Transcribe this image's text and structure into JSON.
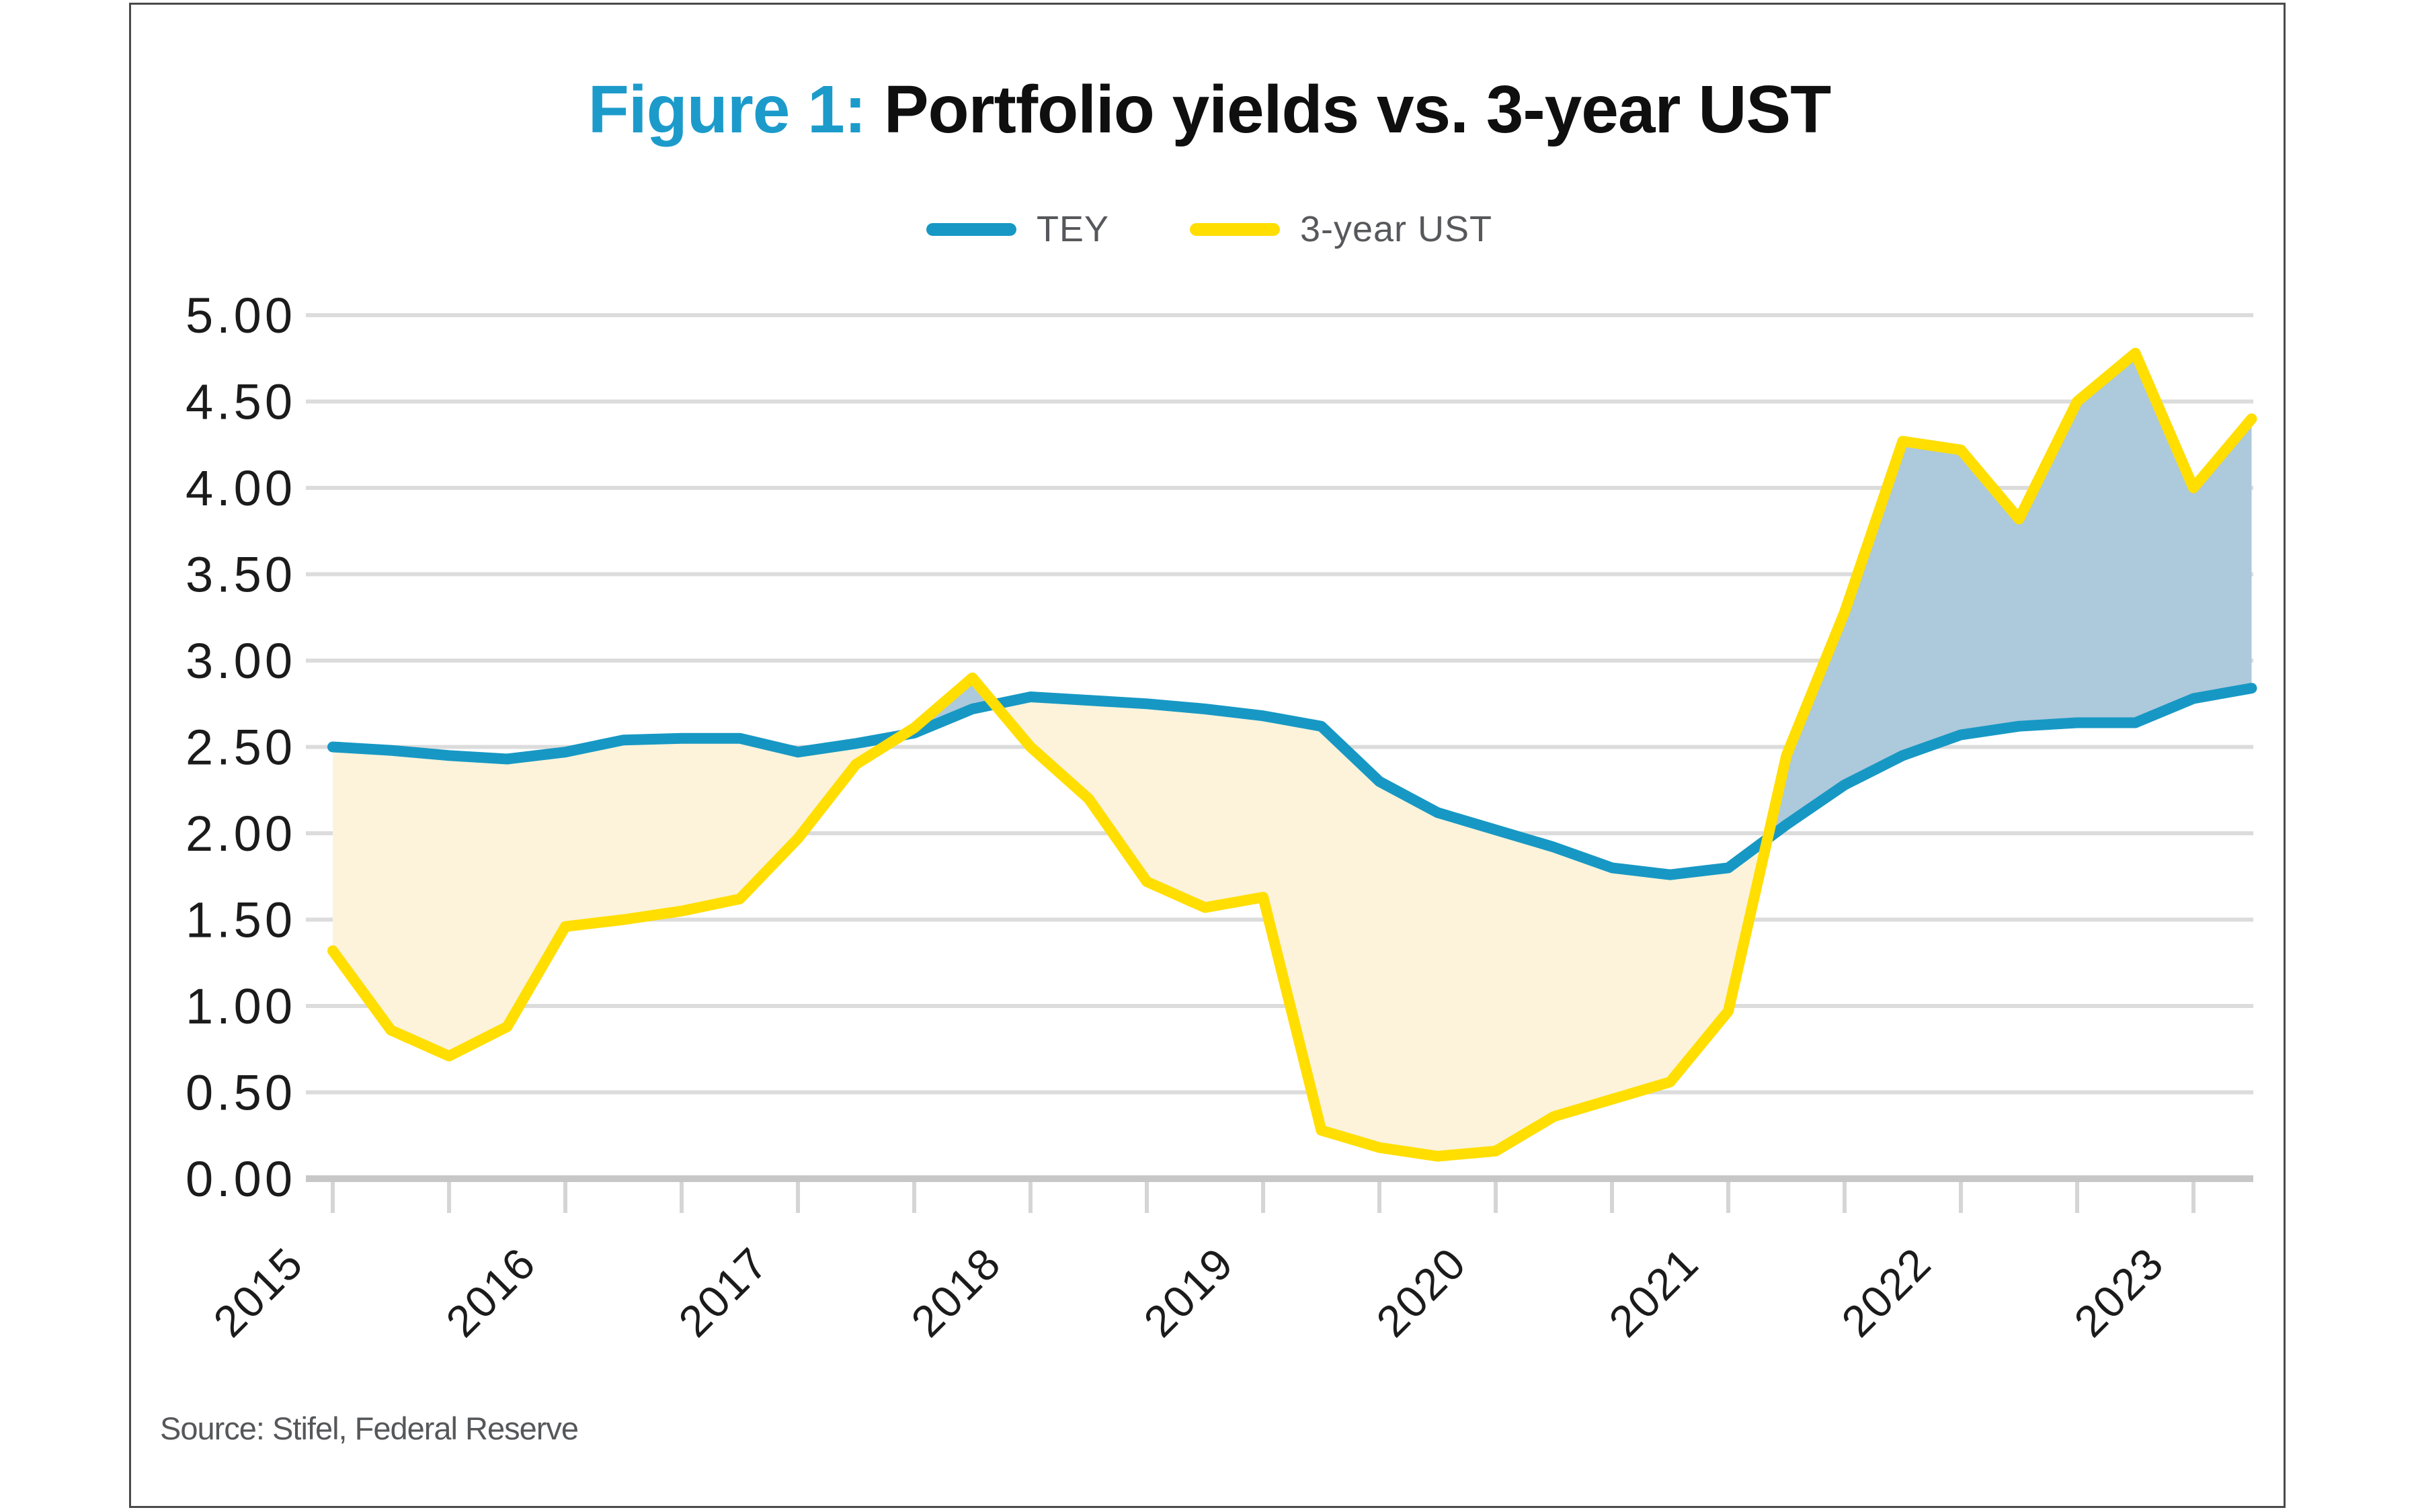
{
  "title": {
    "figure_label": "Figure 1:",
    "text": "Portfolio yields vs. 3-year UST"
  },
  "legend": {
    "items": [
      {
        "label": "TEY",
        "color": "#1798c4"
      },
      {
        "label": "3-year UST",
        "color": "#ffde00"
      }
    ]
  },
  "source": {
    "text": "Source: Stifel, Federal Reserve"
  },
  "colors": {
    "accent_title": "#1c9bcb",
    "tey_line": "#1798c4",
    "ust_line": "#ffde00",
    "fill_tey_above": "#fcf3da",
    "fill_ust_above": "#adc9dc",
    "grid": "#dcdcdc",
    "axis": "#c7c7c7",
    "tick": "#d5d5d5",
    "axis_text": "#1b1b1b",
    "gray_text": "#57585b",
    "frame": "#4a4a4b",
    "background": "#ffffff"
  },
  "chart_data": {
    "type": "line",
    "title": "Figure 1: Portfolio yields vs. 3-year UST",
    "xlabel": "",
    "ylabel": "",
    "grid": true,
    "legend_position": "top-center",
    "xlim": [
      2015.0,
      2023.25
    ],
    "ylim": [
      0,
      5
    ],
    "ytick_step": 0.5,
    "ytick_labels": [
      "0.00",
      "0.50",
      "1.00",
      "1.50",
      "2.00",
      "2.50",
      "3.00",
      "3.50",
      "4.00",
      "4.50",
      "5.00"
    ],
    "xtick_years": [
      2015,
      2016,
      2017,
      2018,
      2019,
      2020,
      2021,
      2022,
      2023
    ],
    "xtick_minor_every": 0.5,
    "x": [
      2015.0,
      2015.25,
      2015.5,
      2015.75,
      2016.0,
      2016.25,
      2016.5,
      2016.75,
      2017.0,
      2017.25,
      2017.5,
      2017.75,
      2018.0,
      2018.25,
      2018.5,
      2018.75,
      2019.0,
      2019.25,
      2019.5,
      2019.75,
      2020.0,
      2020.25,
      2020.5,
      2020.75,
      2021.0,
      2021.25,
      2021.5,
      2021.75,
      2022.0,
      2022.25,
      2022.5,
      2022.75,
      2023.0,
      2023.25
    ],
    "series": [
      {
        "name": "TEY",
        "color": "#1798c4",
        "values": [
          2.5,
          2.48,
          2.45,
          2.43,
          2.47,
          2.54,
          2.55,
          2.55,
          2.47,
          2.52,
          2.58,
          2.72,
          2.79,
          2.77,
          2.75,
          2.72,
          2.68,
          2.62,
          2.3,
          2.12,
          2.02,
          1.92,
          1.8,
          1.76,
          1.8,
          2.05,
          2.28,
          2.45,
          2.57,
          2.62,
          2.64,
          2.64,
          2.78,
          2.84
        ]
      },
      {
        "name": "3-year UST",
        "color": "#ffde00",
        "values": [
          1.32,
          0.86,
          0.71,
          0.88,
          1.46,
          1.5,
          1.55,
          1.62,
          1.97,
          2.4,
          2.61,
          2.9,
          2.5,
          2.2,
          1.72,
          1.57,
          1.63,
          0.28,
          0.18,
          0.13,
          0.16,
          0.36,
          0.46,
          0.56,
          0.97,
          2.45,
          3.28,
          4.27,
          4.22,
          3.82,
          4.5,
          4.78,
          4.0,
          4.4
        ]
      }
    ],
    "fill_between": {
      "tey_above_color": "#fcf3da",
      "ust_above_color": "#adc9dc"
    }
  }
}
